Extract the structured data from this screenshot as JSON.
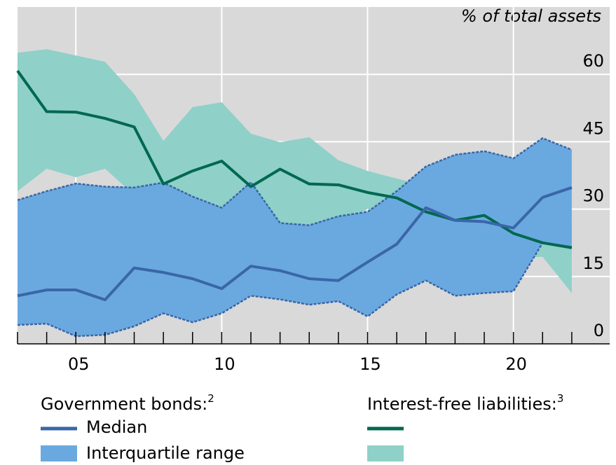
{
  "chart_data": {
    "type": "line-band",
    "unit_label": "% of total assets",
    "x": [
      2003,
      2004,
      2005,
      2006,
      2007,
      2008,
      2009,
      2010,
      2011,
      2012,
      2013,
      2014,
      2015,
      2016,
      2017,
      2018,
      2019,
      2020,
      2021,
      2022
    ],
    "xlim": [
      2003,
      2023.3
    ],
    "xticks": [
      {
        "value": 2005,
        "label": "05"
      },
      {
        "value": 2010,
        "label": "10"
      },
      {
        "value": 2015,
        "label": "15"
      },
      {
        "value": 2020,
        "label": "20"
      }
    ],
    "xminorticks": [
      2003,
      2004,
      2005,
      2006,
      2007,
      2008,
      2009,
      2010,
      2011,
      2012,
      2013,
      2014,
      2015,
      2016,
      2017,
      2018,
      2019,
      2020,
      2021,
      2022
    ],
    "ylim": [
      0,
      75
    ],
    "yticks": [
      0,
      15,
      30,
      45,
      60
    ],
    "grid": true,
    "background": "#d9d9d9",
    "groups": [
      {
        "name": "Government bonds:",
        "note": "2",
        "median": {
          "name": "Median",
          "color": "#3a66a8",
          "values": [
            10.7,
            12,
            12,
            9.8,
            16.9,
            15.9,
            14.5,
            12.3,
            17.3,
            16.3,
            14.5,
            14.1,
            18.2,
            22.2,
            30.3,
            27.5,
            27.2,
            25.8,
            32.6,
            34.8
          ]
        },
        "range": {
          "name": "Interquartile range",
          "color": "#6aa9e0",
          "line_color": "#3a66a8",
          "lower": [
            4.2,
            4.5,
            1.7,
            2,
            3.9,
            6.8,
            4.8,
            6.8,
            10.7,
            9.9,
            8.7,
            9.5,
            6.1,
            11,
            14.1,
            10.7,
            11.3,
            11.7,
            22.5,
            21.6
          ],
          "upper": [
            32,
            34,
            35.7,
            35,
            34.8,
            35.9,
            32.8,
            30.3,
            36,
            26.9,
            26.4,
            28.4,
            29.4,
            34,
            39.5,
            42.1,
            42.9,
            41.3,
            45.8,
            43.2
          ]
        }
      },
      {
        "name": "Interest-free liabilities:",
        "note": "3",
        "median": {
          "color": "#006850",
          "values": [
            60.8,
            51.7,
            51.6,
            50.2,
            48.3,
            35.6,
            38.5,
            40.7,
            35,
            38.9,
            35.6,
            35.4,
            33.7,
            32.5,
            29.4,
            27.5,
            28.6,
            24.6,
            22.5,
            21.4
          ]
        },
        "range": {
          "color": "#8fd0c8",
          "lower": [
            34,
            39,
            37.1,
            39,
            33.1,
            24.7,
            25.2,
            27,
            26.9,
            25.3,
            23.2,
            25.6,
            30.1,
            25.8,
            23.5,
            22.4,
            23.9,
            19.1,
            19.4,
            11.3
          ],
          "upper": [
            64.8,
            65.6,
            64.2,
            62.8,
            55.6,
            45.2,
            52.7,
            53.8,
            46.8,
            44.9,
            46,
            40.9,
            38.5,
            36.8,
            35.3,
            33.1,
            32,
            27.8,
            28.1,
            26.6
          ]
        }
      }
    ]
  }
}
